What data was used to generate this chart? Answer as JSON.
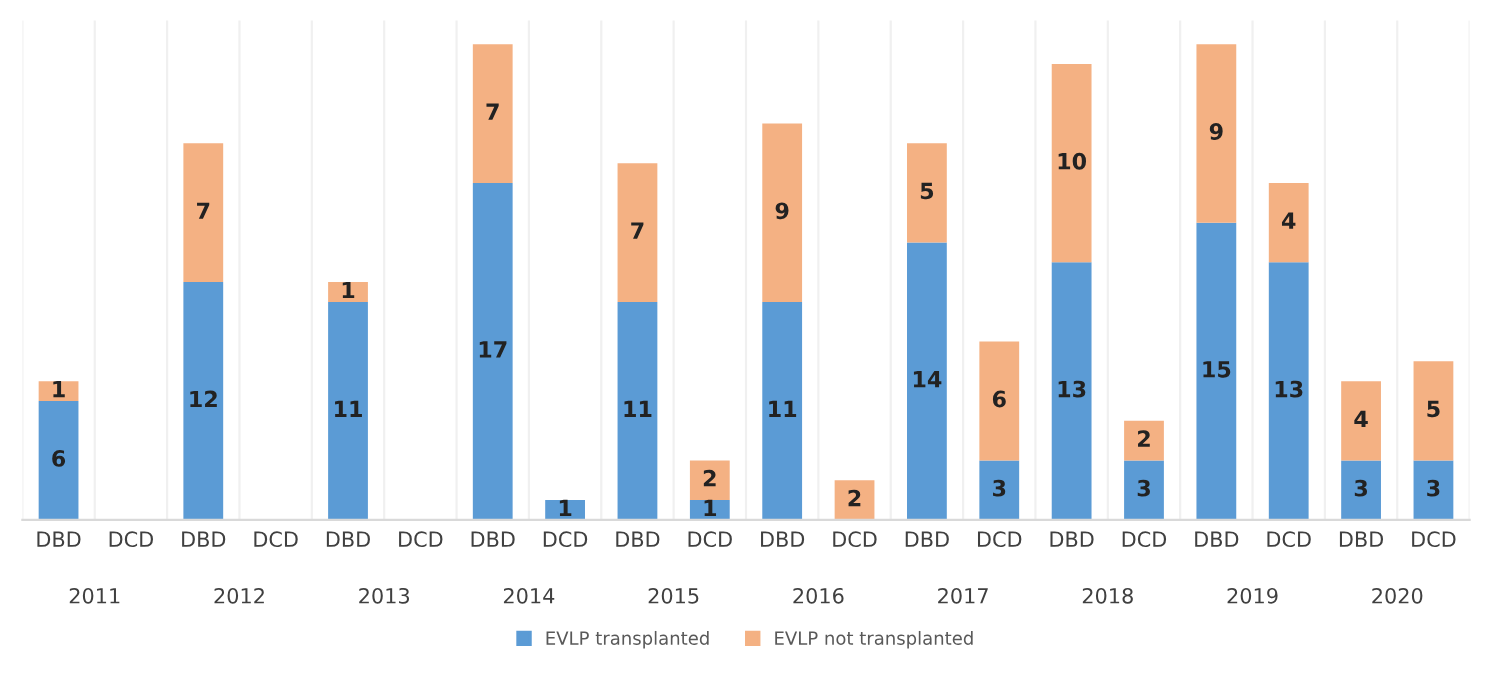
{
  "chart_data": {
    "type": "bar",
    "stacked": true,
    "data_labels": true,
    "legend": "bottom",
    "grid": false,
    "categories": [
      "DBD",
      "DCD",
      "DBD",
      "DCD",
      "DBD",
      "DCD",
      "DBD",
      "DCD",
      "DBD",
      "DCD",
      "DBD",
      "DCD",
      "DBD",
      "DCD",
      "DBD",
      "DCD",
      "DBD",
      "DCD",
      "DBD",
      "DCD"
    ],
    "series": [
      {
        "name": "EVLP transplanted",
        "color": "#5b9bd5",
        "values": [
          6,
          null,
          12,
          null,
          11,
          null,
          17,
          1,
          11,
          1,
          11,
          null,
          14,
          3,
          13,
          3,
          15,
          13,
          3,
          3
        ]
      },
      {
        "name": "EVLP not transplanted",
        "color": "#f4b183",
        "values": [
          1,
          null,
          7,
          null,
          1,
          null,
          7,
          null,
          7,
          2,
          9,
          2,
          5,
          6,
          10,
          2,
          9,
          4,
          4,
          5
        ]
      }
    ],
    "annotations": [
      "2011",
      "2012",
      "2013",
      "2014",
      "2015",
      "2016",
      "2017",
      "2018",
      "2019",
      "2020"
    ]
  }
}
